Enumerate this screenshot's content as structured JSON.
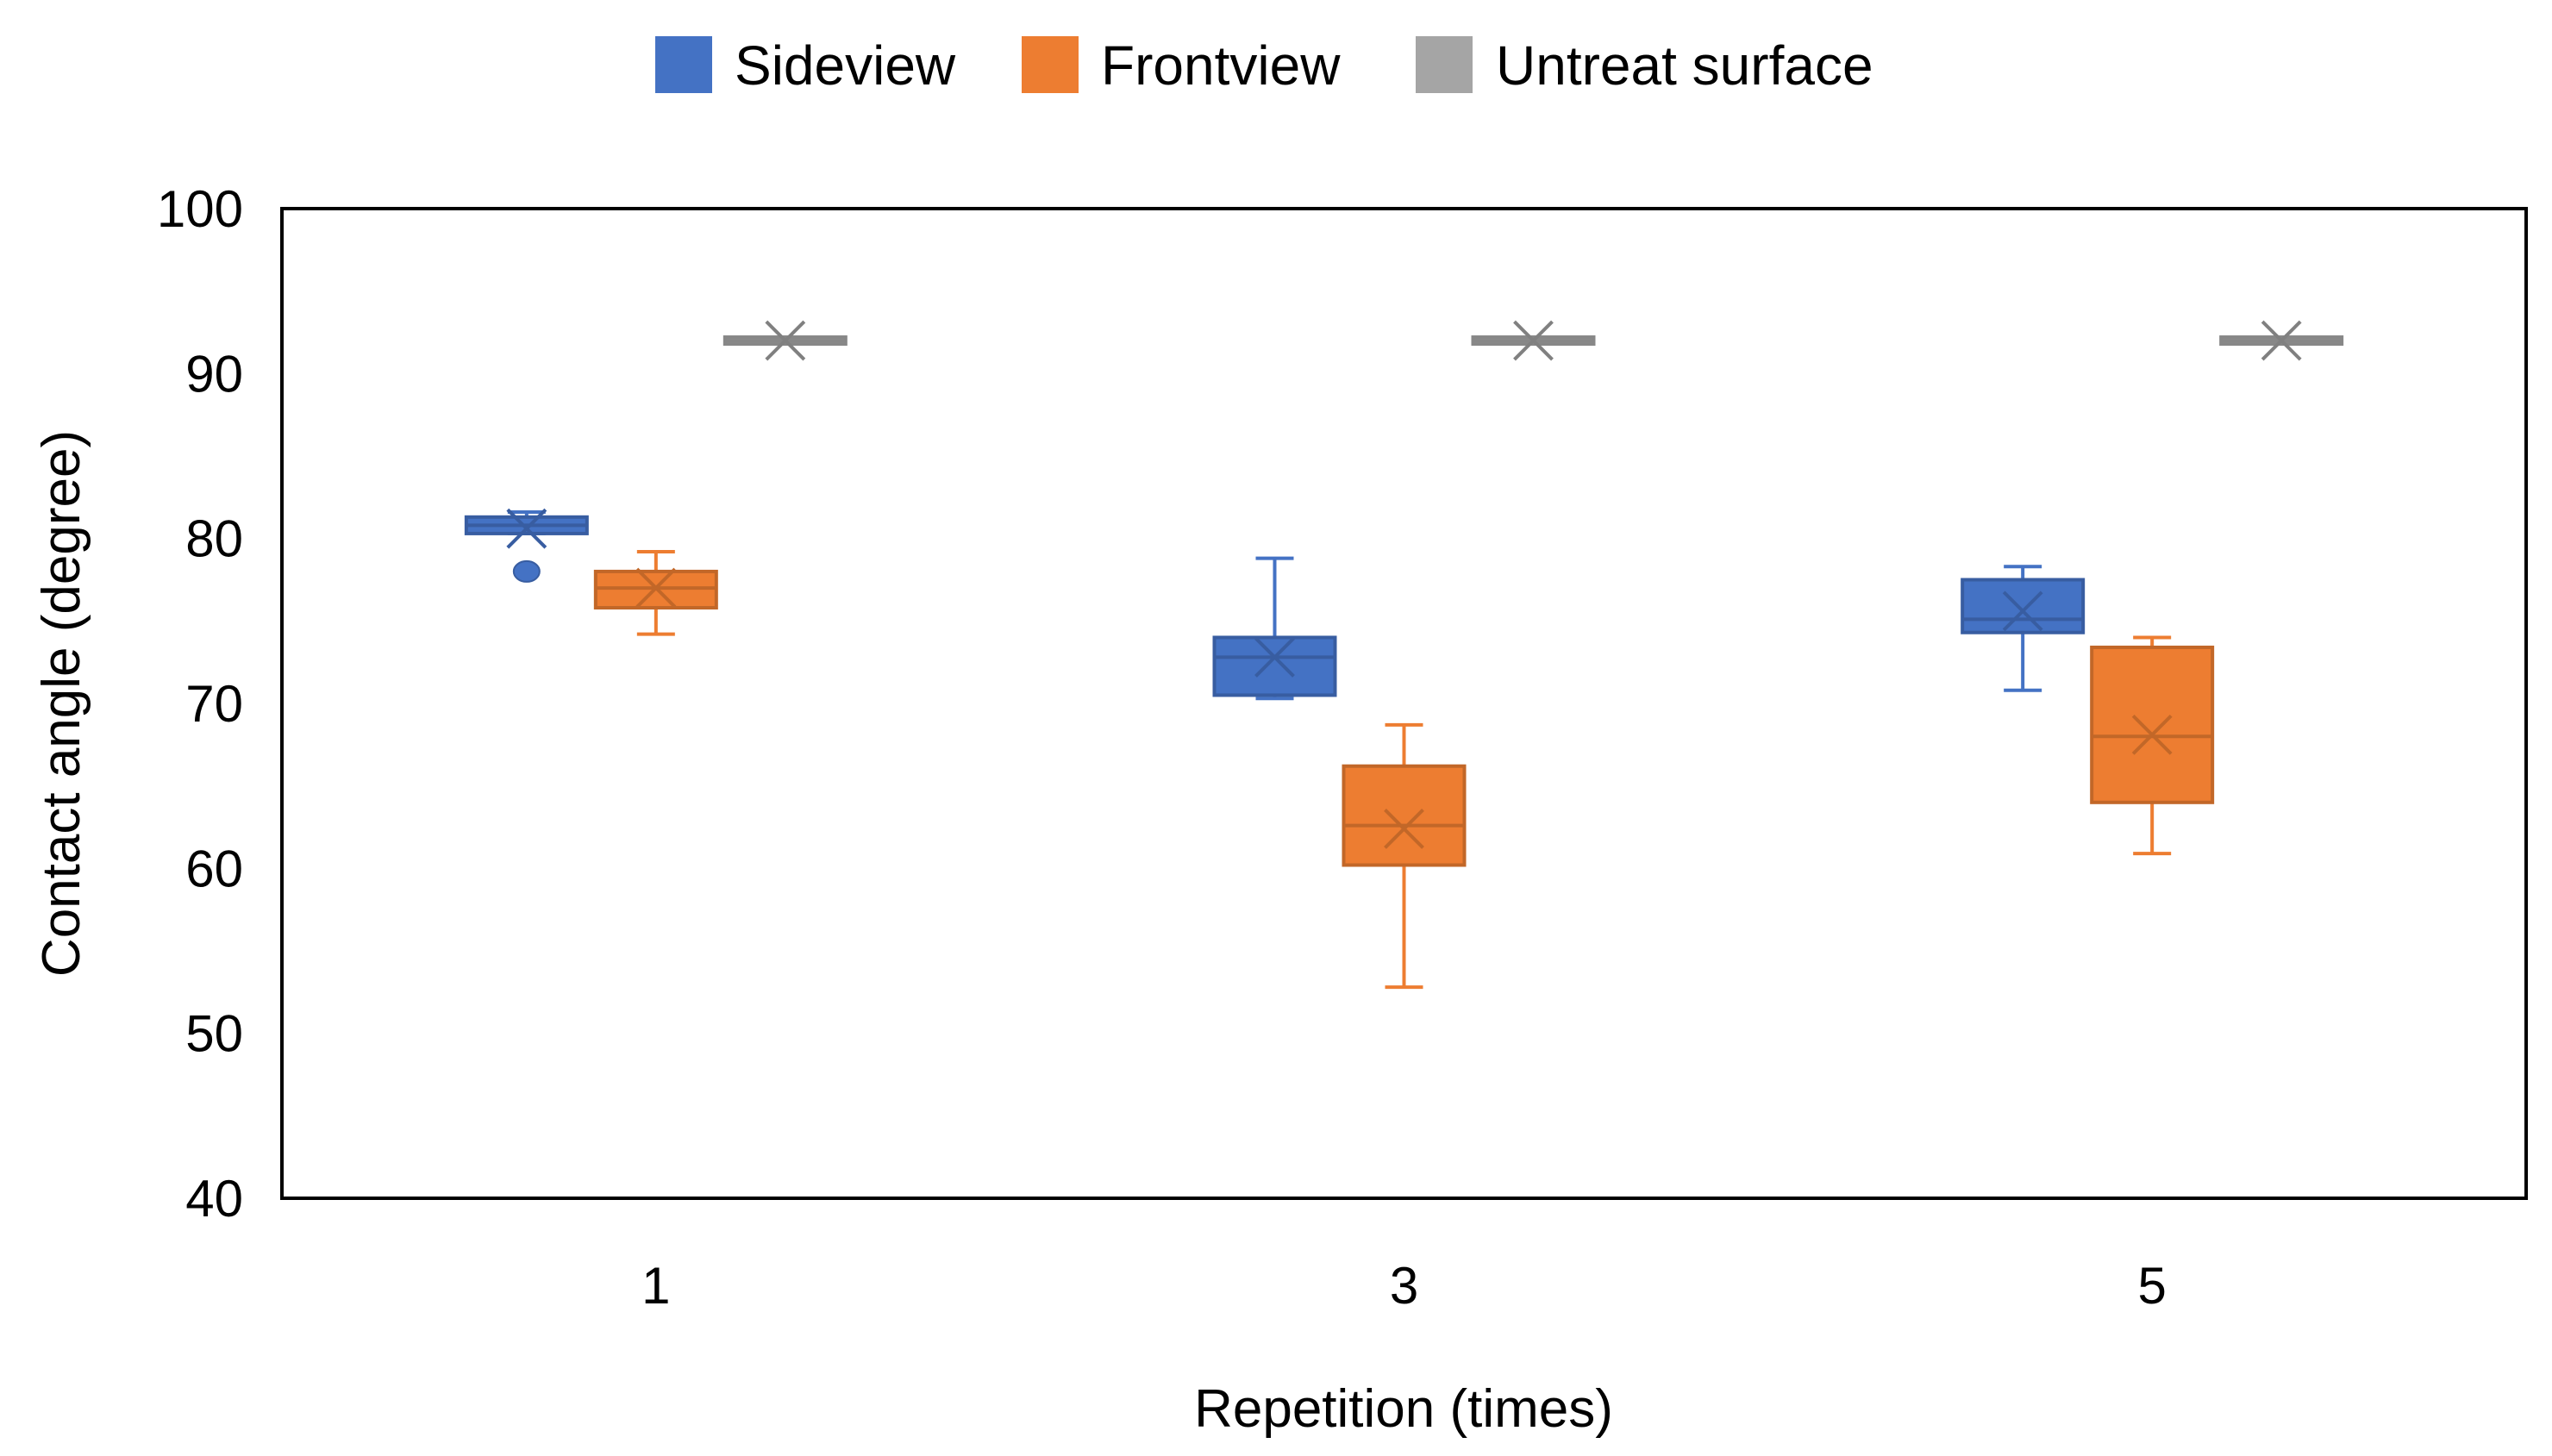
{
  "chart_data": {
    "type": "box",
    "title": "",
    "xlabel": "Repetition  (times)",
    "ylabel": "Contact angle (degree)",
    "ylim": [
      40,
      100
    ],
    "yticks": [
      "40",
      "50",
      "60",
      "70",
      "80",
      "90",
      "100"
    ],
    "categories": [
      "1",
      "3",
      "5"
    ],
    "legend_position": "top-center",
    "grid": false,
    "series": [
      {
        "name": "Sideview",
        "color": "#4472C4",
        "boxes": [
          {
            "min": 80.3,
            "q1": 80.3,
            "median": 80.8,
            "q3": 81.3,
            "max": 81.6,
            "mean": 80.6,
            "outliers": [
              78.0
            ]
          },
          {
            "min": 70.3,
            "q1": 70.5,
            "median": 72.8,
            "q3": 74.0,
            "max": 78.8,
            "mean": 72.8,
            "outliers": []
          },
          {
            "min": 70.8,
            "q1": 74.3,
            "median": 75.1,
            "q3": 77.5,
            "max": 78.3,
            "mean": 75.6,
            "outliers": []
          }
        ]
      },
      {
        "name": "Frontview",
        "color": "#ED7D31",
        "boxes": [
          {
            "min": 74.2,
            "q1": 75.8,
            "median": 77.0,
            "q3": 78.0,
            "max": 79.2,
            "mean": 77.0,
            "outliers": []
          },
          {
            "min": 52.8,
            "q1": 60.2,
            "median": 62.6,
            "q3": 66.2,
            "max": 68.7,
            "mean": 62.4,
            "outliers": []
          },
          {
            "min": 60.9,
            "q1": 64.0,
            "median": 68.0,
            "q3": 73.4,
            "max": 74.0,
            "mean": 68.1,
            "outliers": []
          }
        ]
      },
      {
        "name": "Untreat surface",
        "color": "#A5A5A5",
        "boxes": [
          {
            "min": 92.0,
            "q1": 92.0,
            "median": 92.0,
            "q3": 92.0,
            "max": 92.0,
            "mean": 92.0,
            "outliers": []
          },
          {
            "min": 92.0,
            "q1": 92.0,
            "median": 92.0,
            "q3": 92.0,
            "max": 92.0,
            "mean": 92.0,
            "outliers": []
          },
          {
            "min": 92.0,
            "q1": 92.0,
            "median": 92.0,
            "q3": 92.0,
            "max": 92.0,
            "mean": 92.0,
            "outliers": []
          }
        ]
      }
    ]
  }
}
